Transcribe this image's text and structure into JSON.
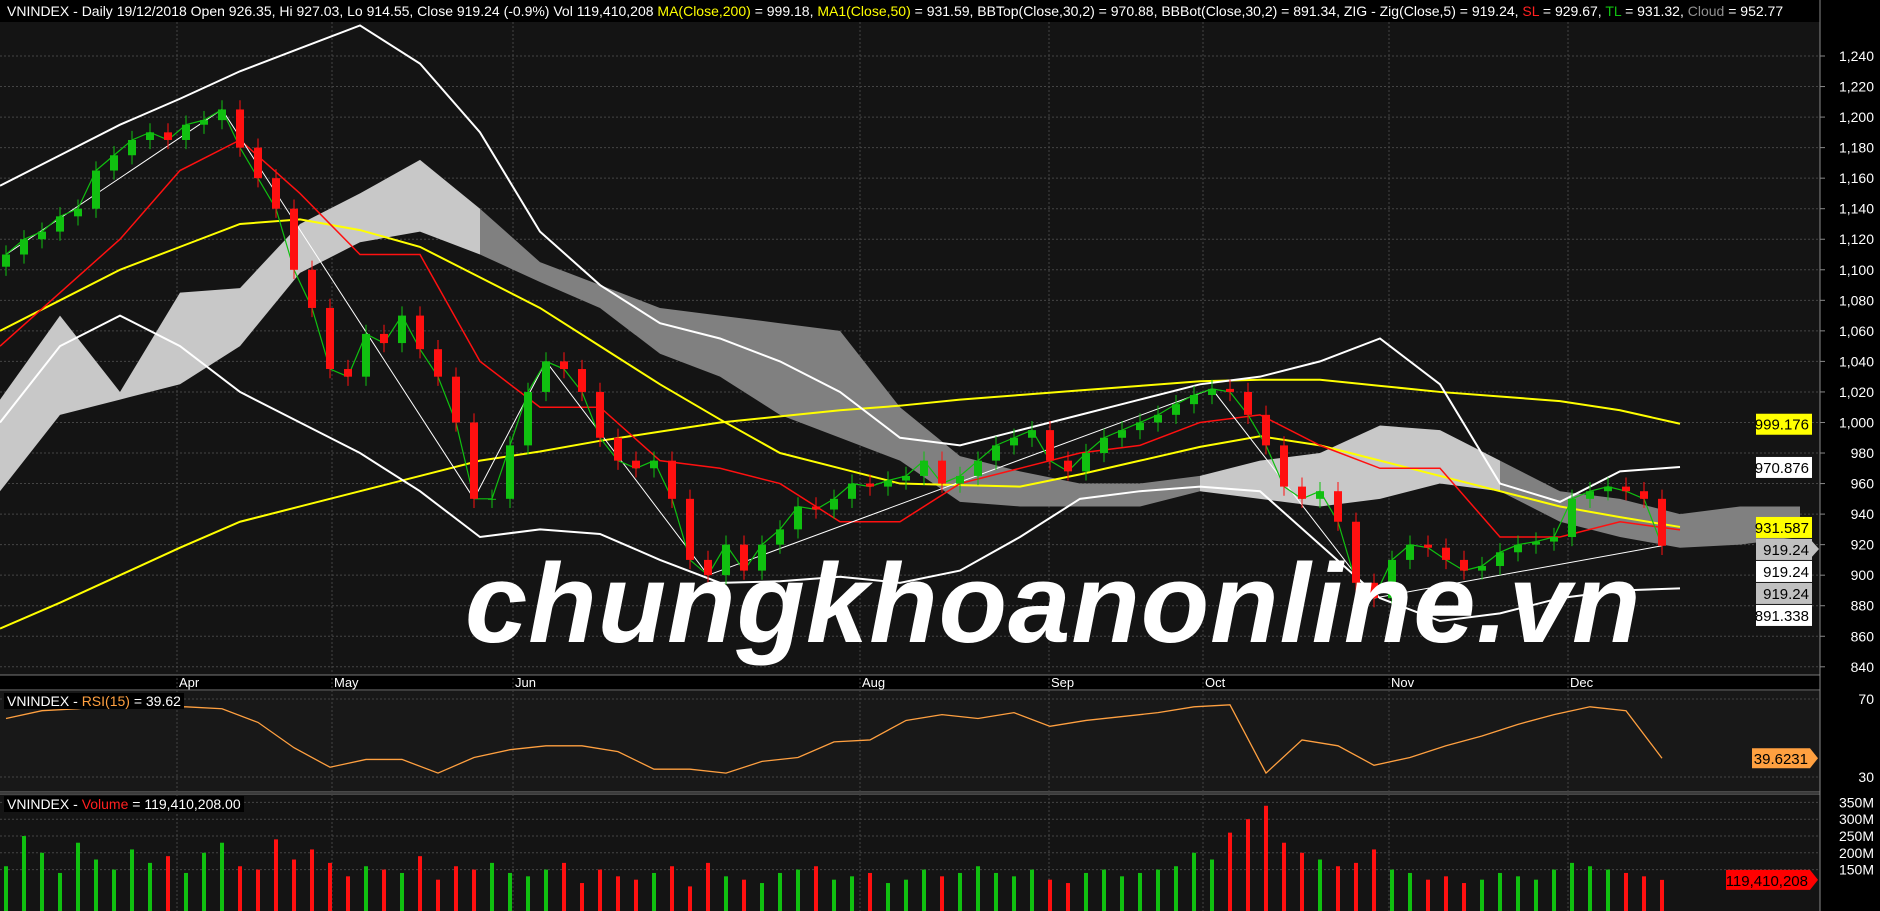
{
  "header": {
    "symbol": "VNINDEX",
    "period": "Daily",
    "date": "19/12/2018",
    "ohlc_text": "Open 926.35, Hi 927.03, Lo 914.55, Close 919.24 (-0.9%) Vol 119,410,208",
    "ma200_label": "MA(Close,200)",
    "ma200_value": "= 999.18,",
    "ma50_label": "MA1(Close,50)",
    "ma50_value": "= 931.59, BBTop(Close,30,2) = 970.88, BBBot(Close,30,2) = 891.34, ZIG - Zig(Close,5) = 919.24,",
    "sl_label": "SL",
    "sl_value": "= 929.67,",
    "tl_label": "TL",
    "tl_value": "= 931.32,",
    "cloud_label": "Cloud",
    "cloud_value": "= 952.77"
  },
  "rsi_header": {
    "prefix": "VNINDEX -",
    "label": "RSI(15)",
    "value": "= 39.62"
  },
  "volume_header": {
    "prefix": "VNINDEX -",
    "label": "Volume",
    "value": "= 119,410,208.00"
  },
  "watermark": "chungkhoanonline.vn",
  "colors": {
    "up": "#10c010",
    "down": "#ff1010",
    "ma": "#ffff00",
    "sl": "#ff1010",
    "bb": "#ffffff",
    "rsi": "#ffa040",
    "cloud_light": "#c8c8c8",
    "cloud_dark": "#808080"
  },
  "chart_data": {
    "type": "candlestick",
    "months": [
      "Apr",
      "May",
      "Jun",
      "Aug",
      "Sep",
      "Oct",
      "Nov",
      "Dec"
    ],
    "price_ticks": [
      840,
      860,
      880,
      900,
      920,
      940,
      960,
      980,
      1000,
      1020,
      1040,
      1060,
      1080,
      1100,
      1120,
      1140,
      1160,
      1180,
      1200,
      1220,
      1240
    ],
    "price_tick_labels": [
      "840",
      "860",
      "880",
      "900",
      "920",
      "940",
      "960",
      "980",
      "1,000",
      "1,020",
      "1,040",
      "1,060",
      "1,080",
      "1,100",
      "1,120",
      "1,140",
      "1,160",
      "1,180",
      "1,200",
      "1,220",
      "1,240"
    ],
    "ylim": [
      830,
      1255
    ],
    "closes": [
      1110,
      1120,
      1125,
      1135,
      1140,
      1165,
      1175,
      1185,
      1190,
      1185,
      1195,
      1198,
      1205,
      1180,
      1160,
      1140,
      1100,
      1075,
      1035,
      1030,
      1058,
      1052,
      1070,
      1048,
      1030,
      1000,
      950,
      950,
      985,
      1020,
      1040,
      1035,
      1020,
      990,
      975,
      970,
      975,
      950,
      910,
      900,
      920,
      903,
      920,
      930,
      945,
      943,
      950,
      960,
      958,
      962,
      965,
      975,
      960,
      965,
      975,
      985,
      990,
      995,
      975,
      968,
      980,
      990,
      995,
      1000,
      1005,
      1012,
      1018,
      1022,
      1020,
      1005,
      985,
      958,
      950,
      955,
      935,
      895,
      885,
      910,
      920,
      918,
      910,
      903,
      906,
      915,
      920,
      922,
      925,
      950,
      955,
      958,
      955,
      950,
      919.24
    ],
    "volumes_m": [
      160,
      250,
      200,
      140,
      230,
      180,
      150,
      210,
      170,
      190,
      140,
      200,
      230,
      160,
      150,
      240,
      180,
      210,
      170,
      130,
      160,
      150,
      140,
      190,
      120,
      160,
      150,
      170,
      140,
      130,
      150,
      170,
      110,
      150,
      130,
      120,
      140,
      160,
      100,
      170,
      130,
      120,
      110,
      140,
      150,
      160,
      120,
      130,
      140,
      110,
      120,
      150,
      130,
      140,
      160,
      140,
      130,
      150,
      120,
      110,
      140,
      150,
      130,
      140,
      150,
      160,
      200,
      180,
      260,
      300,
      340,
      230,
      200,
      180,
      160,
      170,
      210,
      150,
      140,
      120,
      130,
      110,
      120,
      140,
      130,
      120,
      150,
      170,
      160,
      150,
      140,
      130,
      119.41
    ],
    "ma200": [
      865,
      882,
      900,
      918,
      935,
      945,
      955,
      965,
      975,
      981,
      988,
      994,
      1000,
      1004,
      1008,
      1011,
      1015,
      1018,
      1021,
      1024,
      1027,
      1028,
      1028,
      1024,
      1020,
      1017,
      1014,
      1008,
      999.18
    ],
    "ma50": [
      1060,
      1080,
      1100,
      1115,
      1130,
      1133,
      1126,
      1115,
      1095,
      1075,
      1050,
      1025,
      1002,
      980,
      970,
      960,
      959,
      958,
      966,
      975,
      984,
      991,
      985,
      975,
      965,
      955,
      945,
      938,
      931.59
    ],
    "bbtop": [
      1155,
      1175,
      1195,
      1212,
      1230,
      1245,
      1260,
      1235,
      1190,
      1125,
      1090,
      1065,
      1055,
      1040,
      1020,
      990,
      985,
      995,
      1005,
      1015,
      1025,
      1030,
      1040,
      1055,
      1025,
      960,
      948,
      968,
      970.88
    ],
    "bbbot": [
      1000,
      1050,
      1070,
      1050,
      1020,
      1000,
      980,
      955,
      925,
      930,
      927,
      910,
      895,
      896,
      899,
      895,
      903,
      925,
      950,
      955,
      958,
      955,
      920,
      885,
      870,
      875,
      885,
      890,
      891.34
    ],
    "sl": [
      1050,
      1085,
      1120,
      1165,
      1185,
      1150,
      1110,
      1110,
      1040,
      1010,
      1010,
      975,
      970,
      960,
      935,
      935,
      960,
      970,
      980,
      985,
      1000,
      1005,
      985,
      970,
      970,
      925,
      925,
      935,
      929.67
    ],
    "cloud_top": [
      1015,
      1070,
      1020,
      1085,
      1088,
      1130,
      1150,
      1172,
      1140,
      1105,
      1090,
      1075,
      1070,
      1065,
      1060,
      1010,
      978,
      968,
      960,
      960,
      965,
      975,
      980,
      998,
      995,
      975,
      955,
      950,
      940,
      945,
      945
    ],
    "cloud_bottom": [
      955,
      1005,
      1015,
      1025,
      1050,
      1098,
      1118,
      1125,
      1110,
      1092,
      1075,
      1045,
      1030,
      1005,
      990,
      975,
      948,
      945,
      945,
      945,
      955,
      950,
      945,
      950,
      960,
      955,
      935,
      925,
      918,
      920,
      925
    ],
    "cloud_shade": [
      "light",
      "light",
      "light",
      "light",
      "light",
      "light",
      "light",
      "light",
      "dark",
      "dark",
      "dark",
      "dark",
      "dark",
      "dark",
      "dark",
      "dark",
      "dark",
      "dark",
      "dark",
      "dark",
      "light",
      "light",
      "light",
      "light",
      "light",
      "dark",
      "dark",
      "dark",
      "dark",
      "dark"
    ],
    "zig_pivots": [
      0,
      12,
      26,
      30,
      39,
      67,
      76,
      92
    ],
    "rsi": [
      60,
      64,
      65,
      67,
      66,
      66,
      65,
      58,
      45,
      35,
      39,
      39,
      32,
      40,
      44,
      46,
      46,
      43,
      34,
      34,
      32,
      38,
      40,
      48,
      49,
      59,
      62,
      60,
      63,
      56,
      59,
      61,
      63,
      66,
      67,
      32,
      49,
      46,
      36,
      40,
      46,
      51,
      57,
      62,
      66,
      64,
      39.62
    ],
    "rsi_ticks": [
      70,
      30
    ],
    "volume_ticks": [
      "350M",
      "300M",
      "250M",
      "200M",
      "150M"
    ],
    "volume_tick_values": [
      350,
      300,
      250,
      200,
      150
    ],
    "last_labels": [
      {
        "text": "999.176",
        "value": 999.176,
        "bg": "#ffff00",
        "fg": "#000"
      },
      {
        "text": "970.876",
        "value": 970.876,
        "bg": "#ffffff",
        "fg": "#000"
      },
      {
        "text": "931.587",
        "value": 931.587,
        "bg": "#ffff00",
        "fg": "#000"
      },
      {
        "text": "919.24",
        "value": 919.24,
        "bg": "#c0c0c0",
        "fg": "#000",
        "arrow": true
      },
      {
        "text": "919.24",
        "value": 919.24,
        "bg": "#ffffff",
        "fg": "#000"
      },
      {
        "text": "919.24",
        "value": 919.24,
        "bg": "#c0c0c0",
        "fg": "#000"
      },
      {
        "text": "891.338",
        "value": 891.338,
        "bg": "#ffffff",
        "fg": "#000"
      }
    ],
    "rsi_last": "39.6231",
    "volume_last": "119,410,208"
  }
}
